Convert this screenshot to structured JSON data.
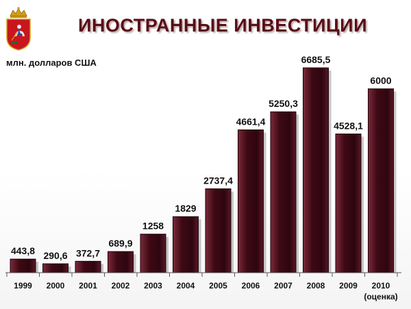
{
  "header": {
    "title": "ИНОСТРАННЫЕ ИНВЕСТИЦИИ",
    "emblem_icon": "moscow-oblast-coat-of-arms-icon"
  },
  "chart_data": {
    "type": "bar",
    "title": "ИНОСТРАННЫЕ ИНВЕСТИЦИИ",
    "ylabel": "млн. долларов США",
    "xlabel": "",
    "categories": [
      "1999",
      "2000",
      "2001",
      "2002",
      "2003",
      "2004",
      "2005",
      "2006",
      "2007",
      "2008",
      "2009",
      "2010"
    ],
    "category_notes": [
      "",
      "",
      "",
      "",
      "",
      "",
      "",
      "",
      "",
      "",
      "",
      "(оценка)"
    ],
    "values": [
      443.8,
      290.6,
      372.7,
      689.9,
      1258,
      1829,
      2737.4,
      4661.4,
      5250.3,
      6685.5,
      4528.1,
      6000
    ],
    "value_labels": [
      "443,8",
      "290,6",
      "372,7",
      "689,9",
      "1258",
      "1829",
      "2737,4",
      "4661,4",
      "5250,3",
      "6685,5",
      "4528,1",
      "6000"
    ],
    "ylim": [
      0,
      6685.5
    ],
    "grid": false,
    "legend": "none",
    "bar_color": "#4a0f1a",
    "bar_highlight": "#8a3f4e"
  }
}
